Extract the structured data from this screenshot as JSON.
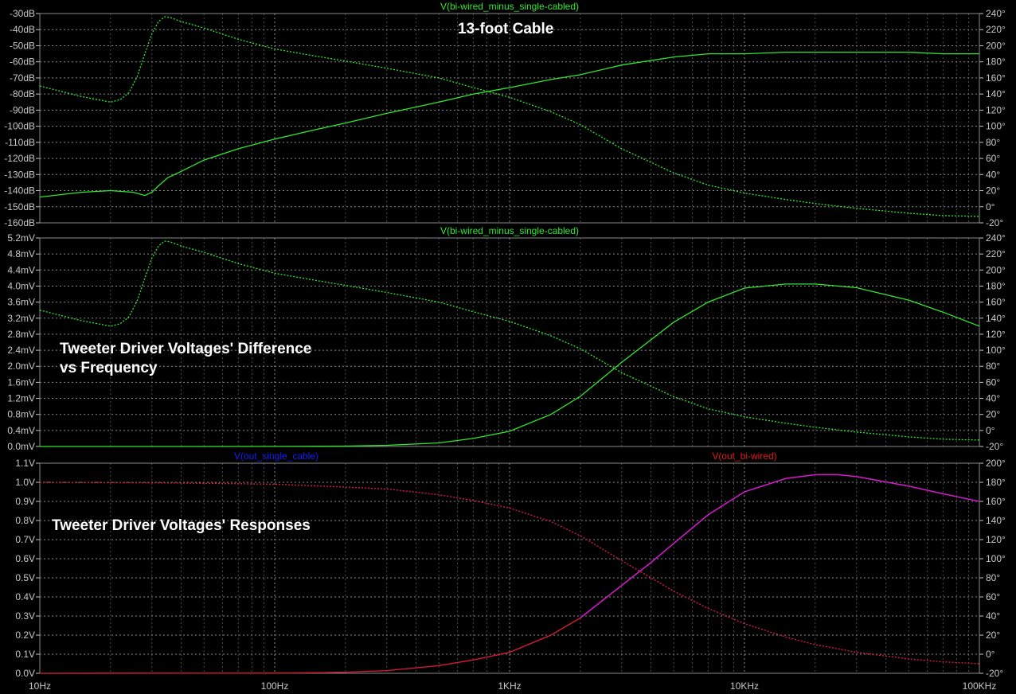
{
  "x_axis": {
    "scale": "log",
    "range_hz": [
      10,
      100000
    ],
    "ticks": [
      {
        "value": 10,
        "label": "10Hz"
      },
      {
        "value": 100,
        "label": "100Hz"
      },
      {
        "value": 1000,
        "label": "1KHz"
      },
      {
        "value": 10000,
        "label": "10KHz"
      },
      {
        "value": 100000,
        "label": "100KHz"
      }
    ]
  },
  "colors": {
    "background": "#000000",
    "grid": "#8a8a8a",
    "axis_text": "#c8c8c8",
    "green": "#2ee82e",
    "blue": "#1a1aff",
    "red": "#e01a1a",
    "magenta": "#d21ad2"
  },
  "titles": {
    "panel1": "13-foot Cable",
    "panel2_line1": "Tweeter Driver Voltages' Difference",
    "panel2_line2": "vs Frequency",
    "panel3": "Tweeter Driver Voltages' Responses"
  },
  "chart_data": [
    {
      "type": "line",
      "panel": "top",
      "trace_labels": [
        {
          "text": "V(bi-wired_minus_single-cabled)",
          "color": "#2ee82e"
        }
      ],
      "left_axis": {
        "range": [
          -160,
          -30
        ],
        "ticks": [
          "-30dB",
          "-40dB",
          "-50dB",
          "-60dB",
          "-70dB",
          "-80dB",
          "-90dB",
          "-100dB",
          "-110dB",
          "-120dB",
          "-130dB",
          "-140dB",
          "-150dB",
          "-160dB"
        ]
      },
      "right_axis": {
        "range": [
          -20,
          240
        ],
        "ticks": [
          "240°",
          "220°",
          "200°",
          "180°",
          "160°",
          "140°",
          "120°",
          "100°",
          "80°",
          "60°",
          "40°",
          "20°",
          "0°",
          "-20°"
        ]
      },
      "series": [
        {
          "name": "magnitude",
          "axis": "left",
          "style": "solid",
          "color": "#2ee82e",
          "x": [
            10,
            15,
            20,
            25,
            28,
            30,
            32,
            35,
            40,
            50,
            70,
            100,
            150,
            200,
            300,
            500,
            700,
            1000,
            1500,
            2000,
            3000,
            5000,
            7000,
            10000,
            15000,
            20000,
            30000,
            50000,
            70000,
            100000
          ],
          "y": [
            -144,
            -141,
            -140,
            -141,
            -143,
            -141,
            -137,
            -132,
            -128,
            -121,
            -114,
            -108,
            -102,
            -98,
            -92,
            -85,
            -80,
            -76,
            -71,
            -68,
            -62,
            -57,
            -55,
            -55,
            -54,
            -54,
            -54,
            -54,
            -55,
            -55
          ]
        },
        {
          "name": "phase",
          "axis": "right",
          "style": "dotted",
          "color": "#2ee82e",
          "x": [
            10,
            15,
            20,
            22,
            24,
            26,
            28,
            30,
            32,
            34,
            36,
            40,
            50,
            70,
            100,
            150,
            200,
            300,
            500,
            700,
            1000,
            1500,
            2000,
            3000,
            5000,
            7000,
            10000,
            15000,
            20000,
            30000,
            50000,
            70000,
            100000
          ],
          "y": [
            150,
            137,
            130,
            133,
            142,
            162,
            190,
            215,
            230,
            236,
            235,
            230,
            222,
            208,
            196,
            187,
            181,
            172,
            160,
            148,
            136,
            118,
            102,
            72,
            42,
            27,
            17,
            9,
            4,
            -2,
            -8,
            -11,
            -12
          ]
        }
      ]
    },
    {
      "type": "line",
      "panel": "middle",
      "trace_labels": [
        {
          "text": "V(bi-wired_minus_single-cabled)",
          "color": "#2ee82e"
        }
      ],
      "left_axis": {
        "range": [
          0,
          5.2
        ],
        "ticks": [
          "5.2mV",
          "4.8mV",
          "4.4mV",
          "4.0mV",
          "3.6mV",
          "3.2mV",
          "2.8mV",
          "2.4mV",
          "2.0mV",
          "1.6mV",
          "1.2mV",
          "0.8mV",
          "0.4mV",
          "0.0mV"
        ]
      },
      "right_axis": {
        "range": [
          -20,
          240
        ],
        "ticks": [
          "240°",
          "220°",
          "200°",
          "180°",
          "160°",
          "140°",
          "120°",
          "100°",
          "80°",
          "60°",
          "40°",
          "20°",
          "0°",
          "-20°"
        ]
      },
      "series": [
        {
          "name": "magnitude",
          "axis": "left",
          "style": "solid",
          "color": "#2ee82e",
          "x": [
            10,
            50,
            100,
            150,
            200,
            300,
            500,
            700,
            1000,
            1500,
            2000,
            3000,
            5000,
            7000,
            10000,
            15000,
            20000,
            30000,
            50000,
            70000,
            100000
          ],
          "y": [
            0,
            0,
            0.002,
            0.005,
            0.01,
            0.03,
            0.09,
            0.2,
            0.38,
            0.8,
            1.25,
            2.1,
            3.1,
            3.6,
            3.95,
            4.05,
            4.05,
            3.96,
            3.65,
            3.35,
            3.0
          ]
        },
        {
          "name": "phase",
          "axis": "right",
          "style": "dotted",
          "color": "#2ee82e",
          "x": [
            10,
            15,
            20,
            22,
            24,
            26,
            28,
            30,
            32,
            34,
            36,
            40,
            50,
            70,
            100,
            150,
            200,
            300,
            500,
            700,
            1000,
            1500,
            2000,
            3000,
            5000,
            7000,
            10000,
            15000,
            20000,
            30000,
            50000,
            70000,
            100000
          ],
          "y": [
            150,
            137,
            130,
            133,
            142,
            162,
            190,
            215,
            230,
            236,
            235,
            230,
            222,
            208,
            196,
            187,
            181,
            172,
            160,
            148,
            136,
            118,
            102,
            72,
            42,
            27,
            17,
            9,
            4,
            -2,
            -8,
            -11,
            -12
          ]
        }
      ]
    },
    {
      "type": "line",
      "panel": "bottom",
      "trace_labels": [
        {
          "text": "V(out_single_cable)",
          "color": "#1a1aff"
        },
        {
          "text": "V(out_bi-wired)",
          "color": "#e01a1a"
        }
      ],
      "left_axis": {
        "range": [
          0,
          1.1
        ],
        "ticks": [
          "1.1V",
          "1.0V",
          "0.9V",
          "0.8V",
          "0.7V",
          "0.6V",
          "0.5V",
          "0.4V",
          "0.3V",
          "0.2V",
          "0.1V",
          "0.0V"
        ]
      },
      "right_axis": {
        "range": [
          -20,
          200
        ],
        "ticks": [
          "200°",
          "180°",
          "160°",
          "140°",
          "120°",
          "100°",
          "80°",
          "60°",
          "40°",
          "20°",
          "0°",
          "-20°"
        ]
      },
      "series": [
        {
          "name": "V(out_single_cable) magnitude",
          "axis": "left",
          "style": "solid",
          "color": "#1a1aff",
          "x": [
            10,
            100,
            150,
            200,
            300,
            500,
            700,
            1000,
            1500,
            2000,
            3000,
            4000,
            5000,
            7000,
            10000,
            15000,
            20000,
            25000,
            30000,
            50000,
            70000,
            100000
          ],
          "y": [
            0,
            0.001,
            0.003,
            0.006,
            0.014,
            0.04,
            0.07,
            0.11,
            0.2,
            0.29,
            0.46,
            0.58,
            0.68,
            0.83,
            0.95,
            1.02,
            1.04,
            1.04,
            1.03,
            0.98,
            0.94,
            0.9
          ]
        },
        {
          "name": "V(out_bi-wired) magnitude",
          "axis": "left",
          "style": "solid",
          "color": "#e01a1a",
          "x": [
            10,
            100,
            150,
            200,
            300,
            500,
            700,
            1000,
            1500,
            2000,
            3000,
            4000,
            5000,
            7000,
            10000,
            15000,
            20000,
            25000,
            30000,
            50000,
            70000,
            100000
          ],
          "y": [
            0,
            0.001,
            0.003,
            0.006,
            0.014,
            0.04,
            0.07,
            0.11,
            0.2,
            0.29,
            0.46,
            0.58,
            0.68,
            0.83,
            0.95,
            1.02,
            1.04,
            1.04,
            1.03,
            0.98,
            0.94,
            0.9
          ]
        },
        {
          "name": "V(out_single_cable) phase",
          "axis": "right",
          "style": "dotted",
          "color": "#1a1aff",
          "x": [
            10,
            30,
            50,
            100,
            200,
            300,
            500,
            700,
            1000,
            1500,
            2000,
            3000,
            4000,
            5000,
            7000,
            10000,
            15000,
            20000,
            30000,
            50000,
            70000,
            100000
          ],
          "y": [
            180,
            179.5,
            179,
            178,
            175,
            173,
            167,
            161,
            153,
            139,
            124,
            98,
            80,
            66,
            48,
            32,
            18,
            10,
            2,
            -5,
            -8,
            -10
          ]
        },
        {
          "name": "V(out_bi-wired) phase",
          "axis": "right",
          "style": "dotted",
          "color": "#e01a1a",
          "x": [
            10,
            30,
            50,
            100,
            200,
            300,
            500,
            700,
            1000,
            1500,
            2000,
            3000,
            4000,
            5000,
            7000,
            10000,
            15000,
            20000,
            30000,
            50000,
            70000,
            100000
          ],
          "y": [
            180,
            179.5,
            179,
            178,
            175,
            173,
            167,
            161,
            153,
            139,
            124,
            98,
            80,
            66,
            48,
            32,
            18,
            10,
            2,
            -5,
            -8,
            -10
          ]
        }
      ]
    }
  ]
}
